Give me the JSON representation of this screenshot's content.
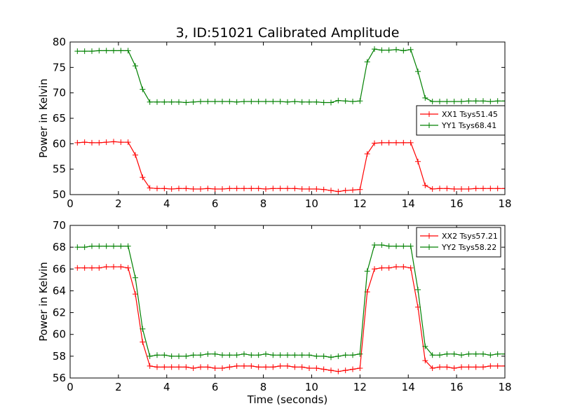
{
  "figure": {
    "title": "3, ID:51021 Calibrated Amplitude",
    "xlabel": "Time (seconds)"
  },
  "chart_data": [
    {
      "type": "line",
      "title": "3, ID:51021 Calibrated Amplitude",
      "xlabel": "",
      "ylabel": "Power in Kelvin",
      "xlim": [
        0,
        18
      ],
      "ylim": [
        50,
        80
      ],
      "xticks": [
        0,
        2,
        4,
        6,
        8,
        10,
        12,
        14,
        16,
        18
      ],
      "yticks": [
        50,
        55,
        60,
        65,
        70,
        75,
        80
      ],
      "grid": false,
      "legend_position": "center-right",
      "x": [
        0.3,
        0.6,
        0.9,
        1.2,
        1.5,
        1.8,
        2.1,
        2.4,
        2.7,
        3.0,
        3.3,
        3.6,
        3.9,
        4.2,
        4.5,
        4.8,
        5.1,
        5.4,
        5.7,
        6.0,
        6.3,
        6.6,
        6.9,
        7.2,
        7.5,
        7.8,
        8.1,
        8.4,
        8.7,
        9.0,
        9.3,
        9.6,
        9.9,
        10.2,
        10.5,
        10.8,
        11.1,
        11.4,
        11.7,
        12.0,
        12.3,
        12.6,
        12.9,
        13.2,
        13.5,
        13.8,
        14.1,
        14.4,
        14.7,
        15.0,
        15.3,
        15.6,
        15.9,
        16.2,
        16.5,
        16.8,
        17.1,
        17.4,
        17.7,
        18.0
      ],
      "series": [
        {
          "name": "XX1 Tsys51.45",
          "color": "#ff0000",
          "values": [
            60.2,
            60.3,
            60.2,
            60.2,
            60.3,
            60.4,
            60.3,
            60.3,
            57.8,
            53.4,
            51.3,
            51.2,
            51.2,
            51.1,
            51.2,
            51.2,
            51.1,
            51.1,
            51.2,
            51.1,
            51.1,
            51.2,
            51.2,
            51.2,
            51.2,
            51.2,
            51.1,
            51.2,
            51.2,
            51.2,
            51.2,
            51.1,
            51.1,
            51.1,
            51.0,
            50.8,
            50.6,
            50.8,
            50.9,
            51.0,
            58.0,
            60.1,
            60.2,
            60.2,
            60.2,
            60.2,
            60.2,
            56.5,
            51.8,
            51.1,
            51.2,
            51.2,
            51.1,
            51.1,
            51.1,
            51.2,
            51.2,
            51.2,
            51.2,
            51.2
          ]
        },
        {
          "name": "YY1 Tsys68.41",
          "color": "#008000",
          "values": [
            78.2,
            78.2,
            78.2,
            78.3,
            78.3,
            78.3,
            78.3,
            78.3,
            75.3,
            70.7,
            68.2,
            68.2,
            68.2,
            68.2,
            68.2,
            68.1,
            68.2,
            68.3,
            68.3,
            68.3,
            68.3,
            68.3,
            68.2,
            68.3,
            68.3,
            68.3,
            68.3,
            68.3,
            68.3,
            68.2,
            68.3,
            68.2,
            68.2,
            68.2,
            68.1,
            68.1,
            68.5,
            68.4,
            68.3,
            68.4,
            76.1,
            78.6,
            78.4,
            78.4,
            78.5,
            78.3,
            78.5,
            74.2,
            69.0,
            68.3,
            68.3,
            68.3,
            68.3,
            68.3,
            68.4,
            68.4,
            68.4,
            68.3,
            68.4,
            68.4
          ]
        }
      ]
    },
    {
      "type": "line",
      "title": "",
      "xlabel": "Time (seconds)",
      "ylabel": "Power in Kelvin",
      "xlim": [
        0,
        18
      ],
      "ylim": [
        56,
        70
      ],
      "xticks": [
        0,
        2,
        4,
        6,
        8,
        10,
        12,
        14,
        16,
        18
      ],
      "yticks": [
        56,
        58,
        60,
        62,
        64,
        66,
        68,
        70
      ],
      "grid": false,
      "legend_position": "top-right",
      "x": [
        0.3,
        0.6,
        0.9,
        1.2,
        1.5,
        1.8,
        2.1,
        2.4,
        2.7,
        3.0,
        3.3,
        3.6,
        3.9,
        4.2,
        4.5,
        4.8,
        5.1,
        5.4,
        5.7,
        6.0,
        6.3,
        6.6,
        6.9,
        7.2,
        7.5,
        7.8,
        8.1,
        8.4,
        8.7,
        9.0,
        9.3,
        9.6,
        9.9,
        10.2,
        10.5,
        10.8,
        11.1,
        11.4,
        11.7,
        12.0,
        12.3,
        12.6,
        12.9,
        13.2,
        13.5,
        13.8,
        14.1,
        14.4,
        14.7,
        15.0,
        15.3,
        15.6,
        15.9,
        16.2,
        16.5,
        16.8,
        17.1,
        17.4,
        17.7,
        18.0
      ],
      "series": [
        {
          "name": "XX2 Tsys57.21",
          "color": "#ff0000",
          "values": [
            66.1,
            66.1,
            66.1,
            66.1,
            66.2,
            66.2,
            66.2,
            66.1,
            63.7,
            59.3,
            57.1,
            57.0,
            57.0,
            57.0,
            57.0,
            57.0,
            56.9,
            57.0,
            57.0,
            56.9,
            56.9,
            57.0,
            57.1,
            57.1,
            57.1,
            57.0,
            57.0,
            57.0,
            57.1,
            57.1,
            57.0,
            57.0,
            56.9,
            56.9,
            56.8,
            56.7,
            56.6,
            56.7,
            56.8,
            56.9,
            63.9,
            66.0,
            66.1,
            66.1,
            66.2,
            66.2,
            66.1,
            62.5,
            57.6,
            56.9,
            57.0,
            57.0,
            56.9,
            57.0,
            57.0,
            57.0,
            57.0,
            57.1,
            57.1,
            57.1
          ]
        },
        {
          "name": "YY2 Tsys58.22",
          "color": "#008000",
          "values": [
            68.0,
            68.0,
            68.1,
            68.1,
            68.1,
            68.1,
            68.1,
            68.1,
            65.2,
            60.5,
            58.0,
            58.1,
            58.1,
            58.0,
            58.0,
            58.0,
            58.1,
            58.1,
            58.2,
            58.2,
            58.1,
            58.1,
            58.1,
            58.2,
            58.1,
            58.1,
            58.2,
            58.1,
            58.1,
            58.1,
            58.1,
            58.1,
            58.1,
            58.0,
            58.0,
            57.9,
            58.0,
            58.1,
            58.1,
            58.2,
            65.8,
            68.2,
            68.2,
            68.1,
            68.1,
            68.1,
            68.1,
            64.1,
            58.9,
            58.1,
            58.1,
            58.2,
            58.2,
            58.1,
            58.2,
            58.2,
            58.2,
            58.1,
            58.2,
            58.2
          ]
        }
      ]
    }
  ]
}
